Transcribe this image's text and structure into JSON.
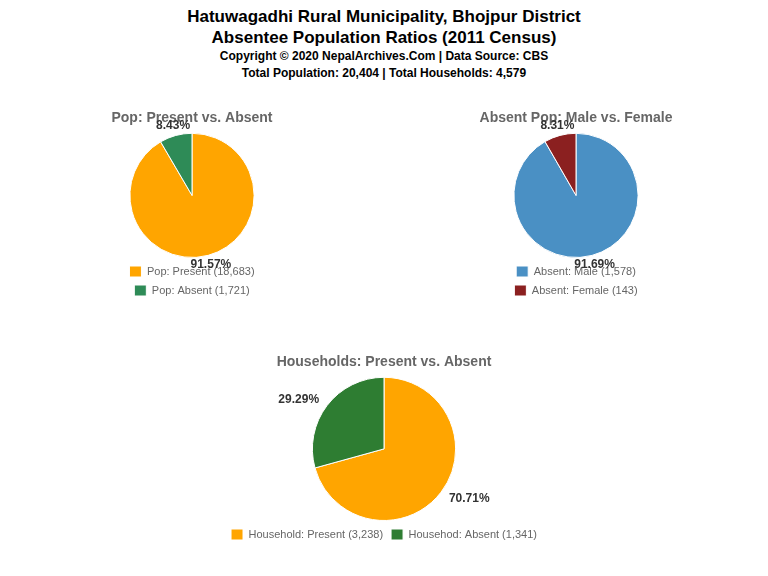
{
  "title": "Hatuwagadhi Rural Municipality, Bhojpur District",
  "subtitle": "Absentee Population Ratios (2011 Census)",
  "annotations": [
    "Copyright © 2020 NepalArchives.Com | Data Source: CBS",
    "Total Population: 20,404 | Total Households: 4,579"
  ],
  "chart_data": [
    {
      "type": "pie",
      "title": "Pop: Present vs. Absent",
      "categories": [
        "Pop: Present (18,683)",
        "Pop: Absent (1,721)"
      ],
      "values": [
        91.57,
        8.43
      ],
      "value_labels": [
        "91.57%",
        "8.43%"
      ],
      "colors": [
        "#FFA500",
        "#2E8B57"
      ],
      "data_labels": true,
      "legend": "bottom"
    },
    {
      "type": "pie",
      "title": "Absent Pop: Male vs. Female",
      "categories": [
        "Absent: Male (1,578)",
        "Absent: Female (143)"
      ],
      "values": [
        91.69,
        8.31
      ],
      "value_labels": [
        "91.69%",
        "8.31%"
      ],
      "colors": [
        "#4A90C4",
        "#8B2020"
      ],
      "data_labels": true,
      "legend": "bottom"
    },
    {
      "type": "pie",
      "title": "Households: Present vs. Absent",
      "categories": [
        "Household: Present (3,238)",
        "Househod: Absent (1,341)"
      ],
      "values": [
        70.71,
        29.29
      ],
      "value_labels": [
        "70.71%",
        "29.29%"
      ],
      "colors": [
        "#FFA500",
        "#2E7D32"
      ],
      "data_labels": true,
      "legend": "bottom"
    }
  ]
}
